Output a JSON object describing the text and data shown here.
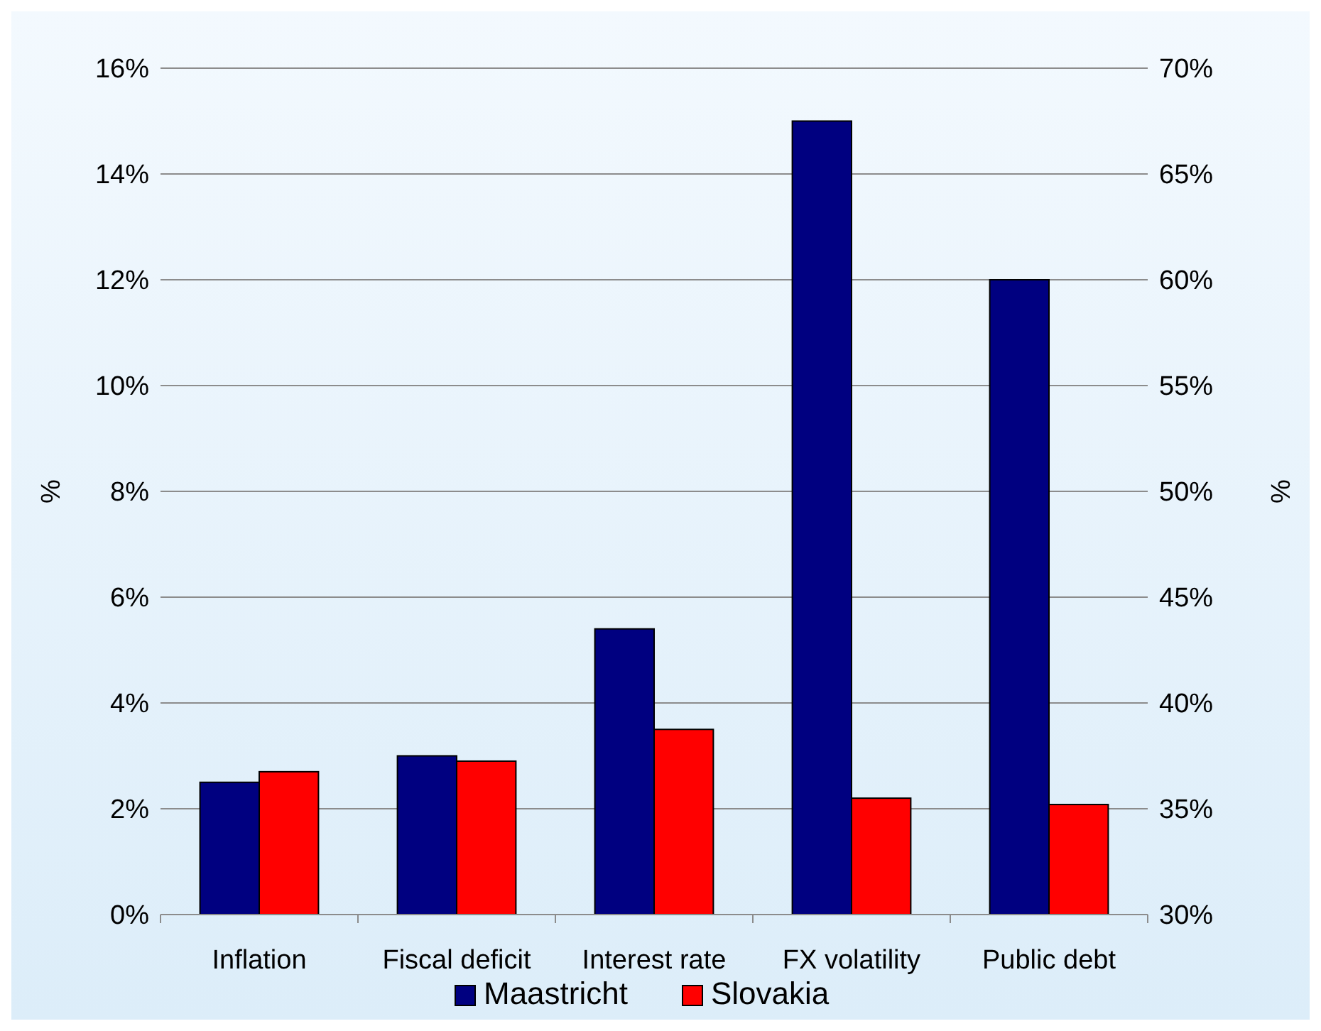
{
  "chart_data": {
    "type": "bar",
    "categories": [
      "Inflation",
      "Fiscal deficit",
      "Interest rate",
      "FX volatility",
      "Public debt"
    ],
    "series": [
      {
        "name": "Maastricht",
        "color": "#000080",
        "values": [
          2.5,
          3.0,
          5.4,
          15,
          null
        ]
      },
      {
        "name": "Slovakia",
        "color": "#ff0000",
        "values": [
          2.7,
          2.9,
          3.5,
          2.2,
          null
        ]
      },
      {
        "color": "#000080",
        "axis": "y2",
        "values": [
          null,
          null,
          null,
          null,
          60
        ]
      },
      {
        "color": "#ff0000",
        "axis": "y2",
        "values": [
          null,
          null,
          null,
          null,
          35.2
        ]
      }
    ],
    "ylabel": "%",
    "y2label": "%",
    "ylim": [
      0,
      16
    ],
    "yticks": [
      {
        "value": 0,
        "label": "0%"
      },
      {
        "value": 2,
        "label": "2%"
      },
      {
        "value": 4,
        "label": "4%"
      },
      {
        "value": 6,
        "label": "6%"
      },
      {
        "value": 8,
        "label": "8%"
      },
      {
        "value": 10,
        "label": "10%"
      },
      {
        "value": 12,
        "label": "12%"
      },
      {
        "value": 14,
        "label": "14%"
      },
      {
        "value": 16,
        "label": "16%"
      }
    ],
    "y2lim": [
      30,
      70
    ],
    "y2ticks": [
      {
        "value": 30,
        "label": "30%"
      },
      {
        "value": 35,
        "label": "35%"
      },
      {
        "value": 40,
        "label": "40%"
      },
      {
        "value": 45,
        "label": "45%"
      },
      {
        "value": 50,
        "label": "50%"
      },
      {
        "value": 55,
        "label": "55%"
      },
      {
        "value": 60,
        "label": "60%"
      },
      {
        "value": 65,
        "label": "65%"
      },
      {
        "value": 70,
        "label": "70%"
      }
    ],
    "grid": "y",
    "legend": "bottom"
  }
}
